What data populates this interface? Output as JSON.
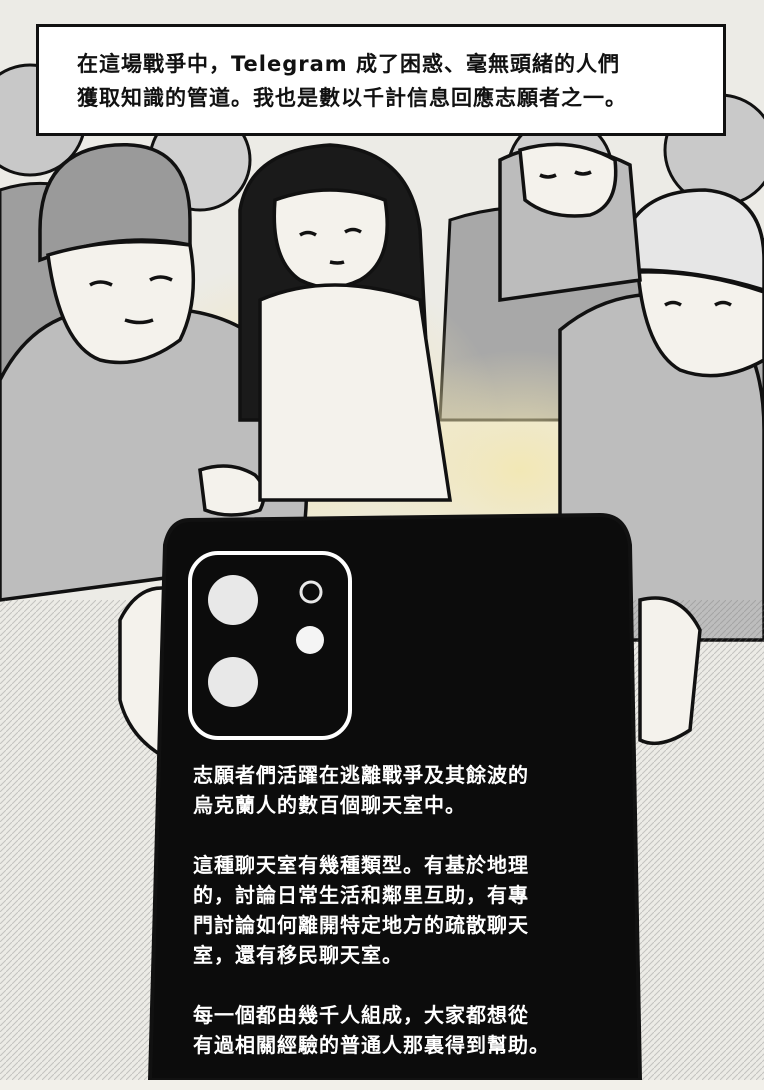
{
  "caption": {
    "line1": "在這場戰爭中，Telegram 成了困惑、毫無頭緒的人們",
    "line2": "獲取知識的管道。我也是數以千計信息回應志願者之一。"
  },
  "phone_text": {
    "para1": [
      "志願者們活躍在逃離戰爭及其餘波的",
      "烏克蘭人的數百個聊天室中。"
    ],
    "para2": [
      "這種聊天室有幾種類型。有基於地理",
      "的，討論日常生活和鄰里互助，有專",
      "門討論如何離開特定地方的疏散聊天",
      "室，還有移民聊天室。"
    ],
    "para3": [
      "每一個都由幾千人組成，大家都想從",
      "有過相關經驗的普通人那裏得到幫助。"
    ]
  },
  "colors": {
    "ink": "#111111",
    "gray_fill": "#bdbdbd",
    "paper": "#f2f0ea",
    "glow": "#f3e7b0"
  },
  "illustration": {
    "icons": [
      "refugee-crowd-illustration",
      "smartphone-back-icon",
      "camera-module-icon"
    ]
  }
}
